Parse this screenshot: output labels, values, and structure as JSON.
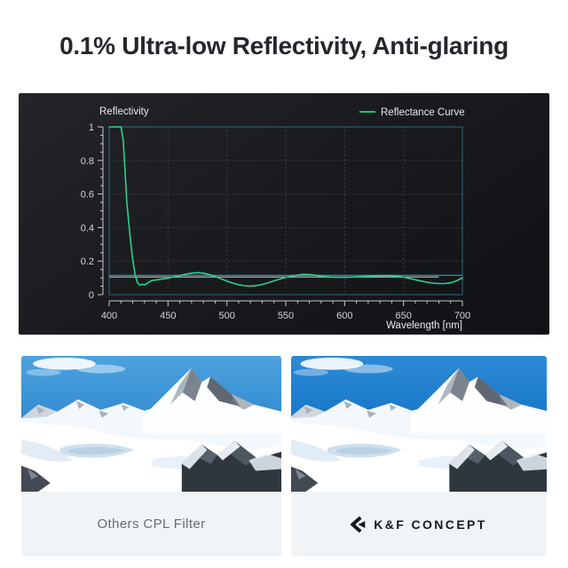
{
  "title": "0.1% Ultra-low Reflectivity, Anti-glaring",
  "chart_data": {
    "type": "line",
    "title": "Reflectivity",
    "xlabel": "Wavelength [nm]",
    "ylabel": "Reflectivity",
    "xlim": [
      400,
      700
    ],
    "ylim": [
      0,
      1
    ],
    "x_ticks": [
      400,
      450,
      500,
      550,
      600,
      650,
      700
    ],
    "y_ticks": [
      0,
      0.2,
      0.4,
      0.6,
      0.8,
      1
    ],
    "x_minor_step": 10,
    "y_minor_step": 0.05,
    "grid": true,
    "legend_position": "top-right",
    "legend": [
      {
        "label": "Reflectance Curve",
        "color": "#2bd08d"
      }
    ],
    "series": [
      {
        "name": "Reflectance Curve",
        "x": [
          400,
          405,
          410,
          412,
          415,
          418,
          420,
          422,
          424,
          426,
          428,
          430,
          433,
          436,
          440,
          444,
          448,
          452,
          456,
          460,
          465,
          470,
          475,
          480,
          485,
          490,
          495,
          500,
          505,
          510,
          515,
          520,
          525,
          530,
          535,
          540,
          545,
          550,
          555,
          560,
          565,
          570,
          575,
          580,
          585,
          590,
          595,
          600,
          605,
          610,
          615,
          620,
          625,
          630,
          635,
          640,
          645,
          650,
          655,
          660,
          665,
          670,
          675,
          680,
          685,
          690,
          695,
          700
        ],
        "y": [
          1.0,
          1.0,
          1.0,
          0.92,
          0.55,
          0.33,
          0.21,
          0.12,
          0.072,
          0.056,
          0.062,
          0.058,
          0.07,
          0.085,
          0.088,
          0.092,
          0.096,
          0.102,
          0.108,
          0.114,
          0.122,
          0.128,
          0.131,
          0.128,
          0.12,
          0.109,
          0.094,
          0.081,
          0.069,
          0.059,
          0.053,
          0.051,
          0.054,
          0.061,
          0.071,
          0.082,
          0.093,
          0.103,
          0.111,
          0.117,
          0.121,
          0.12,
          0.116,
          0.111,
          0.107,
          0.104,
          0.103,
          0.103,
          0.104,
          0.106,
          0.108,
          0.11,
          0.112,
          0.113,
          0.114,
          0.113,
          0.11,
          0.105,
          0.097,
          0.089,
          0.081,
          0.074,
          0.069,
          0.066,
          0.066,
          0.071,
          0.082,
          0.1
        ]
      }
    ],
    "reference_lines": [
      {
        "y": 0.115,
        "x_range": [
          400,
          700
        ],
        "color": "#3e8ca8"
      },
      {
        "y": 0.105,
        "x_range": [
          400,
          680
        ],
        "color": "#aeb4ba"
      }
    ],
    "colors": {
      "panel_bg": "#1a1b1f",
      "border": "#2b6b7c",
      "grid": "#46484d",
      "axis": "#c7cacd",
      "tick": "#d2d5d9",
      "text": "#e8eaec",
      "curve": "#2bd08d"
    }
  },
  "comparison": {
    "left": {
      "label": "Others CPL Filter"
    },
    "right": {
      "label": "K&F CONCEPT"
    }
  }
}
